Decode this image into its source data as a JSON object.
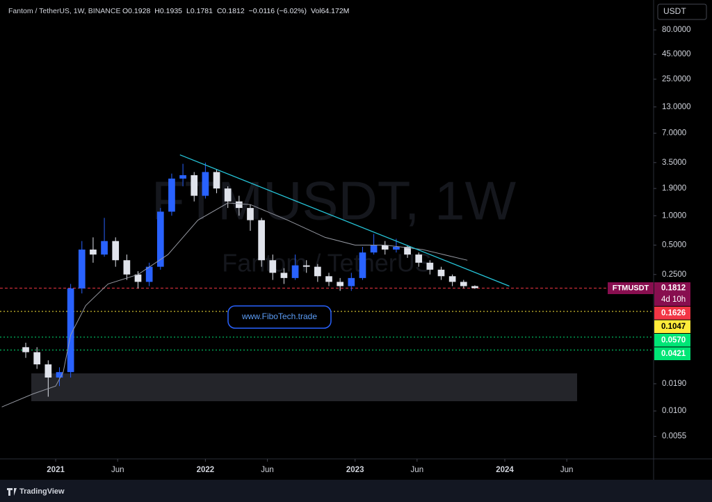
{
  "header": {
    "symbol": "Fantom / TetherUS, 1W, BINANCE",
    "fields": [
      "O0.1928",
      "H0.1935",
      "L0.1781",
      "C0.1812",
      "−0.0116 (−6.02%)",
      "Vol64.172M"
    ]
  },
  "currency": "USDT",
  "watermark": {
    "main": "FTMUSDT, 1W",
    "sub": "Fantom / TetherUS"
  },
  "link": "www.FiboTech.trade",
  "brand": "TradingView",
  "chart_data": {
    "type": "candlestick",
    "x": [
      2020.8,
      2020.875,
      2020.95,
      2021.025,
      2021.1,
      2021.175,
      2021.25,
      2021.325,
      2021.4,
      2021.475,
      2021.55,
      2021.625,
      2021.7,
      2021.775,
      2021.85,
      2021.925,
      2022.0,
      2022.075,
      2022.15,
      2022.225,
      2022.3,
      2022.375,
      2022.45,
      2022.525,
      2022.6,
      2022.675,
      2022.75,
      2022.825,
      2022.9,
      2022.975,
      2023.05,
      2023.125,
      2023.2,
      2023.275,
      2023.35,
      2023.425,
      2023.5,
      2023.575,
      2023.65,
      2023.725,
      2023.8
    ],
    "open": [
      0.045,
      0.04,
      0.03,
      0.022,
      0.025,
      0.18,
      0.45,
      0.4,
      0.55,
      0.35,
      0.25,
      0.21,
      0.3,
      1.1,
      2.4,
      2.6,
      1.6,
      2.8,
      1.9,
      1.4,
      1.2,
      0.9,
      0.35,
      0.26,
      0.23,
      0.31,
      0.3,
      0.24,
      0.21,
      0.19,
      0.23,
      0.42,
      0.5,
      0.45,
      0.48,
      0.4,
      0.33,
      0.28,
      0.24,
      0.21,
      0.19
    ],
    "high": [
      0.05,
      0.045,
      0.033,
      0.028,
      0.2,
      0.55,
      0.6,
      0.95,
      0.6,
      0.4,
      0.27,
      0.33,
      1.2,
      2.7,
      3.4,
      2.8,
      3.5,
      3.0,
      2.0,
      1.6,
      1.3,
      0.95,
      0.4,
      0.29,
      0.4,
      0.35,
      0.32,
      0.26,
      0.23,
      0.26,
      0.48,
      0.65,
      0.55,
      0.58,
      0.5,
      0.42,
      0.35,
      0.3,
      0.25,
      0.22,
      0.1935
    ],
    "low": [
      0.035,
      0.027,
      0.014,
      0.018,
      0.022,
      0.16,
      0.33,
      0.38,
      0.3,
      0.22,
      0.18,
      0.19,
      0.28,
      1.0,
      2.0,
      1.4,
      1.5,
      1.7,
      1.2,
      1.0,
      0.7,
      0.3,
      0.22,
      0.2,
      0.22,
      0.26,
      0.21,
      0.19,
      0.17,
      0.17,
      0.22,
      0.4,
      0.4,
      0.42,
      0.37,
      0.3,
      0.25,
      0.22,
      0.19,
      0.18,
      0.1781
    ],
    "close": [
      0.04,
      0.03,
      0.022,
      0.025,
      0.18,
      0.45,
      0.4,
      0.55,
      0.35,
      0.25,
      0.21,
      0.3,
      1.1,
      2.4,
      2.6,
      1.6,
      2.8,
      1.9,
      1.4,
      1.2,
      0.9,
      0.35,
      0.26,
      0.23,
      0.31,
      0.3,
      0.24,
      0.21,
      0.19,
      0.23,
      0.42,
      0.5,
      0.45,
      0.48,
      0.4,
      0.33,
      0.28,
      0.24,
      0.21,
      0.19,
      0.1812
    ],
    "up_color": "#2962ff",
    "down_color": "#e0e3eb",
    "ma": {
      "color": "#9598a1",
      "x": [
        2020.64,
        2020.85,
        2021.0,
        2021.05,
        2021.1,
        2021.2,
        2021.35,
        2021.55,
        2021.75,
        2021.95,
        2022.15,
        2022.3,
        2022.55,
        2022.8,
        2023.0,
        2023.2,
        2023.45,
        2023.75
      ],
      "values": [
        0.011,
        0.015,
        0.018,
        0.025,
        0.06,
        0.12,
        0.2,
        0.25,
        0.4,
        0.9,
        1.35,
        1.3,
        0.9,
        0.6,
        0.5,
        0.5,
        0.45,
        0.35
      ]
    },
    "trend": {
      "color": "#26c6da",
      "x": [
        2021.83,
        2024.03
      ],
      "values": [
        4.2,
        0.19
      ]
    },
    "last": {
      "symbol": "FTMUSDT",
      "price": 0.1812,
      "countdown": "4d 10h",
      "color": "#880e4f",
      "line_color": "#f23645"
    },
    "levels": [
      {
        "value": 0.1626,
        "color": "#f23645",
        "line": false
      },
      {
        "value": 0.1047,
        "color": "#ffeb3b",
        "line": true
      },
      {
        "value": 0.057,
        "label": "0.0570",
        "color": "#00e676",
        "line": true
      },
      {
        "value": 0.0421,
        "color": "#00e676",
        "line": true
      }
    ],
    "log_scale": true,
    "xlim": [
      2020.628,
      2024.994
    ],
    "ylim": [
      0.00323,
      161.9
    ],
    "xticks": [
      2021,
      {
        "value": 2021.414,
        "label": "Jun"
      },
      2022,
      {
        "value": 2022.414,
        "label": "Jun"
      },
      2023,
      {
        "value": 2023.414,
        "label": "Jun"
      },
      2024,
      {
        "value": 2024.414,
        "label": "Jun"
      }
    ],
    "yticks": [
      {
        "value": 80,
        "label": "80.0000"
      },
      {
        "value": 45,
        "label": "45.0000"
      },
      {
        "value": 25,
        "label": "25.0000"
      },
      {
        "value": 13,
        "label": "13.0000"
      },
      {
        "value": 7,
        "label": "7.0000"
      },
      {
        "value": 3.5,
        "label": "3.5000"
      },
      {
        "value": 1.9,
        "label": "1.9000"
      },
      {
        "value": 1,
        "label": "1.0000"
      },
      {
        "value": 0.5,
        "label": "0.5000"
      },
      {
        "value": 0.25,
        "label": "0.2500"
      },
      {
        "value": 0.019,
        "label": "0.0190"
      },
      {
        "value": 0.01,
        "label": "0.0100"
      },
      0.0055
    ]
  }
}
